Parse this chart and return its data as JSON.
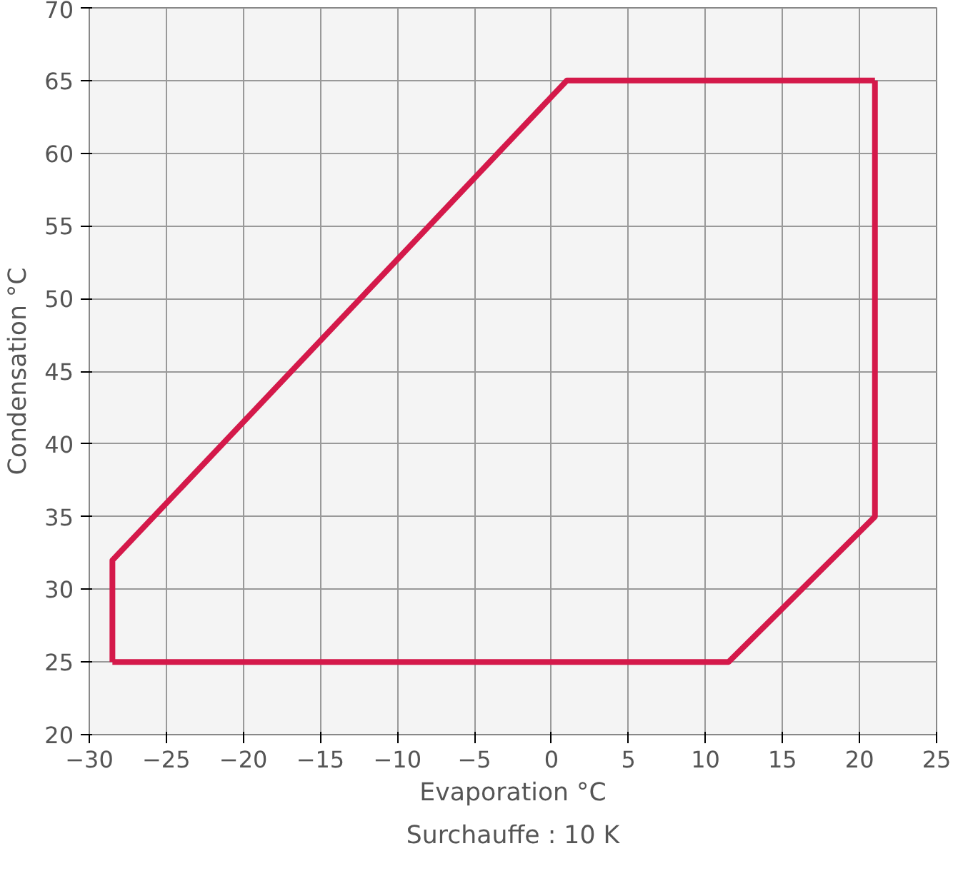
{
  "chart_data": {
    "type": "line",
    "xlabel": "Evaporation °C",
    "ylabel": "Condensation °C",
    "annotations": [
      "Surchauffe : 10 K"
    ],
    "series": [
      {
        "color": "#d4194a",
        "x": [
          -28.5,
          -28.5,
          1,
          21
        ],
        "values": [
          25,
          32,
          65,
          65
        ]
      },
      {
        "color": "#d4194a",
        "x": [
          -28.5,
          11.5,
          21,
          21
        ],
        "values": [
          25,
          25,
          35,
          65
        ]
      }
    ],
    "xlim": [
      -30,
      25
    ],
    "ylim": [
      20,
      70
    ],
    "xticks": [
      -30,
      -25,
      -20,
      -15,
      -10,
      -5,
      0,
      5,
      10,
      15,
      20,
      25
    ],
    "yticks": [
      20,
      25,
      30,
      35,
      40,
      45,
      50,
      55,
      60,
      65,
      70
    ],
    "grid": true,
    "marker": "none",
    "line_style": "solid"
  }
}
